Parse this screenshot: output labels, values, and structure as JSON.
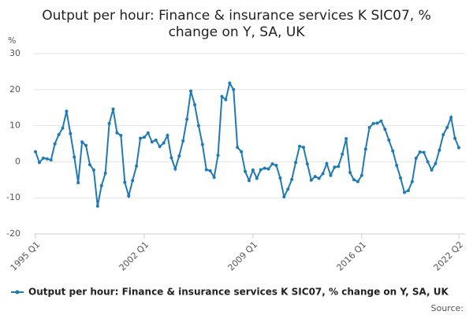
{
  "chart_data": {
    "type": "line",
    "title": [
      "Output per hour: Finance & insurance services K SIC07, %",
      "change on Y, SA, UK"
    ],
    "y_label": "%",
    "source": "Source:",
    "categories": [
      "1995 Q1",
      null,
      null,
      null,
      null,
      null,
      null,
      null,
      null,
      null,
      null,
      null,
      null,
      null,
      null,
      null,
      null,
      null,
      null,
      null,
      null,
      null,
      null,
      null,
      null,
      null,
      null,
      null,
      "2002 Q1",
      null,
      null,
      null,
      null,
      null,
      null,
      null,
      null,
      null,
      null,
      null,
      null,
      null,
      null,
      null,
      null,
      null,
      null,
      null,
      null,
      null,
      null,
      null,
      null,
      null,
      null,
      null,
      "2009 Q1",
      null,
      null,
      null,
      null,
      null,
      null,
      null,
      null,
      null,
      null,
      null,
      null,
      null,
      null,
      null,
      null,
      null,
      null,
      null,
      null,
      null,
      null,
      null,
      null,
      null,
      null,
      null,
      "2016 Q1",
      null,
      null,
      null,
      null,
      null,
      null,
      null,
      null,
      null,
      null,
      null,
      null,
      null,
      null,
      null,
      null,
      null,
      null,
      null,
      null,
      null,
      null,
      null,
      null,
      "2022 Q2"
    ],
    "series": [
      {
        "name": "Output per hour: Finance & insurance services K SIC07, % change on Y, SA, UK",
        "color": "#1f7ab5",
        "values": [
          2.8,
          -0.2,
          1.0,
          0.8,
          0.5,
          5.0,
          7.5,
          9.3,
          14.0,
          7.8,
          1.3,
          -5.8,
          5.5,
          4.5,
          -0.8,
          -2.3,
          -12.3,
          -6.6,
          -3.2,
          10.6,
          14.6,
          8.0,
          7.3,
          -5.7,
          -9.5,
          -5.2,
          -1.2,
          6.5,
          6.8,
          8.0,
          5.5,
          6.0,
          4.2,
          5.2,
          7.3,
          1.1,
          -2.0,
          1.6,
          5.8,
          11.8,
          19.6,
          15.8,
          10.0,
          4.8,
          -2.2,
          -2.5,
          -4.3,
          1.8,
          18.1,
          17.2,
          21.8,
          20.0,
          4.0,
          2.8,
          -2.7,
          -5.2,
          -2.3,
          -4.6,
          -2.2,
          -1.8,
          -2.0,
          -0.6,
          -1.0,
          -4.5,
          -9.7,
          -7.6,
          -4.9,
          -0.2,
          4.3,
          4.0,
          -0.6,
          -5.1,
          -4.1,
          -4.6,
          -3.3,
          -0.5,
          -3.8,
          -1.5,
          -1.3,
          2.1,
          6.4,
          -3.0,
          -5.0,
          -5.5,
          -3.8,
          3.5,
          9.5,
          10.6,
          10.7,
          11.3,
          9.0,
          6.0,
          3.0,
          -1.0,
          -4.5,
          -8.5,
          -8.0,
          -5.5,
          1.0,
          2.7,
          2.6,
          0,
          -2.3,
          -0.5,
          3.2,
          7.5,
          9.5,
          12.3,
          6.5,
          3.9
        ]
      }
    ],
    "ylim": [
      -20,
      30
    ],
    "yticks": [
      -20,
      -10,
      0,
      10,
      20,
      30
    ],
    "grid": true
  }
}
